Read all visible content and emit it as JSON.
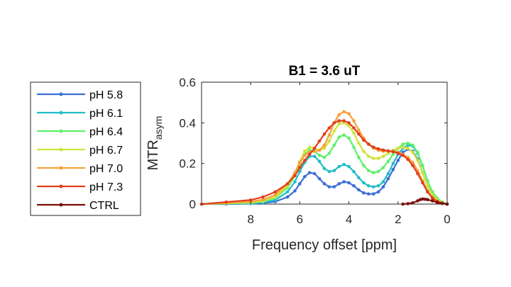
{
  "chart_data": {
    "type": "line",
    "title": "B1 = 3.6 uT",
    "xlabel": "Frequency offset [ppm]",
    "ylabel_main": "MTR",
    "ylabel_sub": "asym",
    "xlim": [
      10,
      0
    ],
    "ylim": [
      0,
      0.6
    ],
    "x_reversed": true,
    "x_ticks": [
      8,
      6,
      4,
      2,
      0
    ],
    "y_ticks": [
      0,
      0.2,
      0.4,
      0.6
    ],
    "x_tick_labels": [
      "8",
      "6",
      "4",
      "2",
      "0"
    ],
    "y_tick_labels": [
      "0",
      "0.2",
      "0.4",
      "0.6"
    ],
    "grid": false,
    "legend_position": "left-outside",
    "series": [
      {
        "name": "pH 5.8",
        "color": "#3d6fd6",
        "x": [
          10,
          9,
          8,
          7.5,
          7,
          6.5,
          6.2,
          6.0,
          5.8,
          5.6,
          5.4,
          5.2,
          5.0,
          4.8,
          4.6,
          4.4,
          4.2,
          4.0,
          3.8,
          3.6,
          3.4,
          3.2,
          3.0,
          2.8,
          2.6,
          2.4,
          2.2,
          2.0,
          1.8,
          1.6,
          1.4,
          1.2,
          1.0,
          0.8,
          0.6,
          0.4,
          0.2,
          0
        ],
        "y": [
          0,
          0,
          0.002,
          0.005,
          0.012,
          0.035,
          0.065,
          0.1,
          0.135,
          0.155,
          0.15,
          0.125,
          0.1,
          0.085,
          0.085,
          0.1,
          0.11,
          0.105,
          0.09,
          0.07,
          0.055,
          0.05,
          0.05,
          0.06,
          0.085,
          0.125,
          0.17,
          0.215,
          0.255,
          0.27,
          0.26,
          0.22,
          0.155,
          0.09,
          0.045,
          0.02,
          0.008,
          0
        ]
      },
      {
        "name": "pH 6.1",
        "color": "#23bdc6",
        "x": [
          10,
          9,
          8,
          7.5,
          7,
          6.5,
          6.2,
          6.0,
          5.8,
          5.6,
          5.4,
          5.2,
          5.0,
          4.8,
          4.6,
          4.4,
          4.2,
          4.0,
          3.8,
          3.6,
          3.4,
          3.2,
          3.0,
          2.8,
          2.6,
          2.4,
          2.2,
          2.0,
          1.8,
          1.6,
          1.4,
          1.2,
          1.0,
          0.8,
          0.6,
          0.4,
          0.2,
          0
        ],
        "y": [
          0,
          0.002,
          0.004,
          0.008,
          0.02,
          0.06,
          0.11,
          0.16,
          0.205,
          0.235,
          0.235,
          0.21,
          0.175,
          0.16,
          0.165,
          0.185,
          0.195,
          0.185,
          0.16,
          0.13,
          0.105,
          0.09,
          0.085,
          0.09,
          0.11,
          0.15,
          0.2,
          0.245,
          0.275,
          0.29,
          0.285,
          0.25,
          0.19,
          0.115,
          0.06,
          0.028,
          0.01,
          0
        ]
      },
      {
        "name": "pH 6.4",
        "color": "#5ff06b",
        "x": [
          10,
          9,
          8,
          7.5,
          7,
          6.5,
          6.2,
          6.0,
          5.8,
          5.6,
          5.4,
          5.2,
          5.0,
          4.8,
          4.6,
          4.4,
          4.2,
          4.0,
          3.8,
          3.6,
          3.4,
          3.2,
          3.0,
          2.8,
          2.6,
          2.4,
          2.2,
          2.0,
          1.8,
          1.6,
          1.4,
          1.2,
          1.0,
          0.8,
          0.6,
          0.4,
          0.2,
          0
        ],
        "y": [
          0,
          0.003,
          0.006,
          0.012,
          0.03,
          0.08,
          0.14,
          0.2,
          0.245,
          0.265,
          0.26,
          0.24,
          0.23,
          0.25,
          0.29,
          0.33,
          0.34,
          0.325,
          0.28,
          0.23,
          0.19,
          0.165,
          0.155,
          0.16,
          0.18,
          0.21,
          0.245,
          0.275,
          0.295,
          0.3,
          0.29,
          0.255,
          0.19,
          0.115,
          0.06,
          0.028,
          0.01,
          0
        ]
      },
      {
        "name": "pH 6.7",
        "color": "#cfe43a",
        "x": [
          10,
          9,
          8,
          7.5,
          7,
          6.5,
          6.2,
          6.0,
          5.8,
          5.6,
          5.4,
          5.2,
          5.0,
          4.8,
          4.6,
          4.4,
          4.2,
          4.0,
          3.8,
          3.6,
          3.4,
          3.2,
          3.0,
          2.8,
          2.6,
          2.4,
          2.2,
          2.0,
          1.8,
          1.6,
          1.4,
          1.2,
          1.0,
          0.8,
          0.6,
          0.4,
          0.2,
          0
        ],
        "y": [
          0,
          0.004,
          0.008,
          0.016,
          0.035,
          0.09,
          0.15,
          0.21,
          0.26,
          0.28,
          0.275,
          0.265,
          0.275,
          0.31,
          0.36,
          0.395,
          0.4,
          0.385,
          0.35,
          0.3,
          0.26,
          0.235,
          0.225,
          0.225,
          0.235,
          0.25,
          0.265,
          0.275,
          0.28,
          0.275,
          0.255,
          0.215,
          0.155,
          0.09,
          0.045,
          0.02,
          0.008,
          0
        ]
      },
      {
        "name": "pH 7.0",
        "color": "#f7a03c",
        "x": [
          10,
          9,
          8,
          7.5,
          7,
          6.5,
          6.2,
          6.0,
          5.8,
          5.6,
          5.4,
          5.2,
          5.0,
          4.8,
          4.6,
          4.4,
          4.2,
          4.0,
          3.8,
          3.6,
          3.4,
          3.2,
          3.0,
          2.8,
          2.6,
          2.4,
          2.2,
          2.0,
          1.8,
          1.6,
          1.4,
          1.2,
          1.0,
          0.8,
          0.6,
          0.4,
          0.2,
          0
        ],
        "y": [
          0,
          0.006,
          0.012,
          0.022,
          0.045,
          0.1,
          0.155,
          0.205,
          0.24,
          0.255,
          0.26,
          0.265,
          0.29,
          0.34,
          0.4,
          0.44,
          0.455,
          0.445,
          0.41,
          0.365,
          0.325,
          0.295,
          0.275,
          0.265,
          0.26,
          0.26,
          0.26,
          0.255,
          0.245,
          0.23,
          0.205,
          0.165,
          0.115,
          0.065,
          0.032,
          0.014,
          0.005,
          0
        ]
      },
      {
        "name": "pH 7.3",
        "color": "#e0401c",
        "x": [
          10,
          9,
          8,
          7.5,
          7,
          6.5,
          6.2,
          6.0,
          5.8,
          5.6,
          5.4,
          5.2,
          5.0,
          4.8,
          4.6,
          4.4,
          4.2,
          4.0,
          3.8,
          3.6,
          3.4,
          3.2,
          3.0,
          2.8,
          2.6,
          2.4,
          2.2,
          2.0,
          1.8,
          1.6,
          1.4,
          1.2,
          1.0,
          0.8,
          0.6,
          0.4,
          0.2,
          0
        ],
        "y": [
          0,
          0.01,
          0.02,
          0.035,
          0.06,
          0.1,
          0.14,
          0.18,
          0.215,
          0.245,
          0.275,
          0.31,
          0.345,
          0.375,
          0.4,
          0.41,
          0.41,
          0.4,
          0.375,
          0.345,
          0.315,
          0.295,
          0.28,
          0.272,
          0.266,
          0.262,
          0.258,
          0.25,
          0.24,
          0.22,
          0.19,
          0.15,
          0.105,
          0.06,
          0.03,
          0.013,
          0.005,
          0
        ]
      },
      {
        "name": "CTRL",
        "color": "#7c0f0a",
        "x": [
          1.8,
          1.6,
          1.4,
          1.2,
          1.1,
          1.0,
          0.9,
          0.8,
          0.6,
          0.4,
          0.2,
          0
        ],
        "y": [
          0,
          0.002,
          0.006,
          0.016,
          0.022,
          0.025,
          0.024,
          0.022,
          0.016,
          0.008,
          0.003,
          0
        ]
      }
    ]
  }
}
